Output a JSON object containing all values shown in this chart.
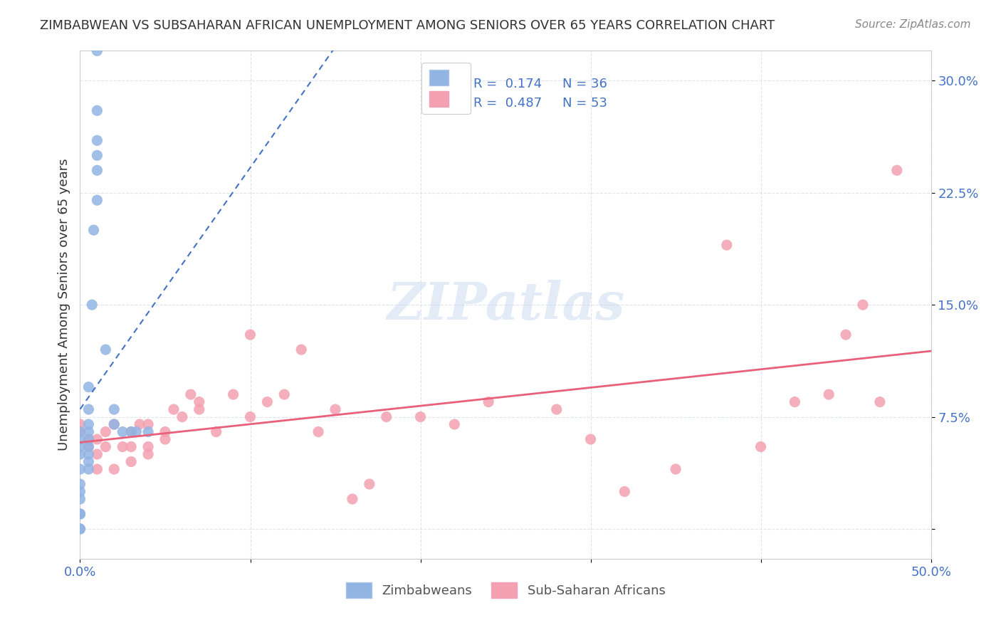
{
  "title": "ZIMBABWEAN VS SUBSAHARAN AFRICAN UNEMPLOYMENT AMONG SENIORS OVER 65 YEARS CORRELATION CHART",
  "source": "Source: ZipAtlas.com",
  "ylabel": "Unemployment Among Seniors over 65 years",
  "xlabel": "",
  "xlim": [
    0.0,
    0.5
  ],
  "ylim": [
    -0.02,
    0.32
  ],
  "xticks": [
    0.0,
    0.1,
    0.2,
    0.3,
    0.4,
    0.5
  ],
  "xticklabels": [
    "0.0%",
    "",
    "",
    "",
    "",
    "50.0%"
  ],
  "yticks": [
    0.0,
    0.075,
    0.15,
    0.225,
    0.3
  ],
  "yticklabels": [
    "",
    "7.5%",
    "15.0%",
    "22.5%",
    "30.0%"
  ],
  "legend_r1": "R =  0.174",
  "legend_n1": "N = 36",
  "legend_r2": "R =  0.487",
  "legend_n2": "N = 53",
  "blue_color": "#92b4e3",
  "pink_color": "#f4a0b0",
  "blue_line_color": "#4472c4",
  "pink_line_color": "#e8607a",
  "watermark": "ZIPatlas",
  "zimbabwe_x": [
    0.0,
    0.0,
    0.0,
    0.0,
    0.0,
    0.0,
    0.0,
    0.0,
    0.0,
    0.0,
    0.0,
    0.0,
    0.005,
    0.005,
    0.005,
    0.005,
    0.005,
    0.005,
    0.005,
    0.005,
    0.005,
    0.007,
    0.008,
    0.01,
    0.01,
    0.01,
    0.01,
    0.01,
    0.01,
    0.015,
    0.02,
    0.02,
    0.025,
    0.03,
    0.033,
    0.04
  ],
  "zimbabwe_y": [
    0.0,
    0.0,
    0.01,
    0.01,
    0.02,
    0.025,
    0.03,
    0.04,
    0.05,
    0.055,
    0.06,
    0.065,
    0.04,
    0.045,
    0.05,
    0.055,
    0.06,
    0.065,
    0.07,
    0.08,
    0.095,
    0.15,
    0.2,
    0.22,
    0.24,
    0.25,
    0.26,
    0.28,
    0.32,
    0.12,
    0.07,
    0.08,
    0.065,
    0.065,
    0.065,
    0.065
  ],
  "subsaharan_x": [
    0.0,
    0.0,
    0.005,
    0.005,
    0.01,
    0.01,
    0.01,
    0.015,
    0.015,
    0.02,
    0.02,
    0.025,
    0.03,
    0.03,
    0.03,
    0.035,
    0.04,
    0.04,
    0.04,
    0.05,
    0.05,
    0.055,
    0.06,
    0.065,
    0.07,
    0.07,
    0.08,
    0.09,
    0.1,
    0.1,
    0.11,
    0.12,
    0.13,
    0.14,
    0.15,
    0.16,
    0.17,
    0.18,
    0.2,
    0.22,
    0.24,
    0.28,
    0.3,
    0.32,
    0.35,
    0.38,
    0.4,
    0.42,
    0.44,
    0.45,
    0.46,
    0.47,
    0.48
  ],
  "subsaharan_y": [
    0.065,
    0.07,
    0.055,
    0.06,
    0.04,
    0.05,
    0.06,
    0.055,
    0.065,
    0.04,
    0.07,
    0.055,
    0.045,
    0.055,
    0.065,
    0.07,
    0.05,
    0.055,
    0.07,
    0.06,
    0.065,
    0.08,
    0.075,
    0.09,
    0.08,
    0.085,
    0.065,
    0.09,
    0.075,
    0.13,
    0.085,
    0.09,
    0.12,
    0.065,
    0.08,
    0.02,
    0.03,
    0.075,
    0.075,
    0.07,
    0.085,
    0.08,
    0.06,
    0.025,
    0.04,
    0.19,
    0.055,
    0.085,
    0.09,
    0.13,
    0.15,
    0.085,
    0.24
  ]
}
